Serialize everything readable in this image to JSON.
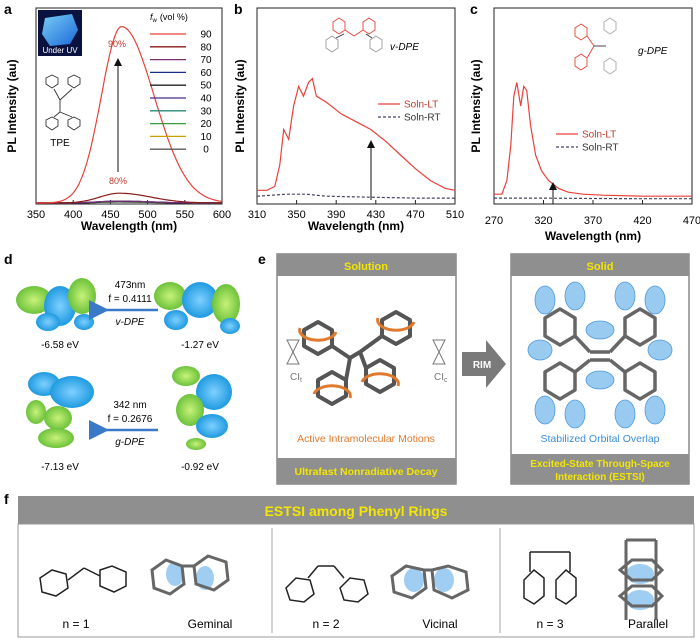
{
  "panels": {
    "a": {
      "letter": "a"
    },
    "b": {
      "letter": "b"
    },
    "c": {
      "letter": "c"
    },
    "d": {
      "letter": "d"
    },
    "e": {
      "letter": "e"
    },
    "f": {
      "letter": "f"
    }
  },
  "panel_a": {
    "inset_label": "Under UV",
    "molecule_label": "TPE",
    "legend_title": "f",
    "legend_title_sub": "w",
    "legend_unit": "(vol %)",
    "peak_label_high": "90%",
    "peak_label_low": "80%"
  },
  "panel_b": {
    "molecule_label": "v-DPE"
  },
  "panel_c": {
    "molecule_label": "g-DPE"
  },
  "panel_d": {
    "top": {
      "wavelength": "473nm",
      "osc": "f = 0.4111",
      "label": "v-DPE",
      "energy_left": "-6.58 eV",
      "energy_right": "-1.27 eV"
    },
    "bottom": {
      "wavelength": "342 nm",
      "osc": "f = 0.2676",
      "label": "g-DPE",
      "energy_left": "-7.13 eV",
      "energy_right": "-0.92 eV"
    }
  },
  "panel_e": {
    "solution_title": "Solution",
    "solid_title": "Solid",
    "ci_left": "CI",
    "ci_left_sub": "t",
    "ci_right": "CI",
    "ci_right_sub": "c",
    "arrow_label": "RIM",
    "motion_caption": "Active Intramolecular Motions",
    "overlap_caption": "Stabilized Orbital Overlap",
    "solution_footer": "Ultrafast Nonradiative Decay",
    "solid_footer_line1": "Excited-State Through-Space",
    "solid_footer_line2": "Interaction (ESTSI)"
  },
  "panel_f": {
    "title": "ESTSI among Phenyl Rings",
    "items": [
      {
        "n": "n = 1",
        "name": "Geminal"
      },
      {
        "n": "n = 2",
        "name": "Vicinal"
      },
      {
        "n": "n = 3",
        "name": "Parallel"
      }
    ]
  },
  "colors": {
    "red": "#e8413a",
    "banner": "#8f8f8f",
    "yellow": "#f3e600",
    "orange": "#e07a2e",
    "blue": "#3a8fd8"
  },
  "chart_data": [
    {
      "id": "a",
      "type": "line",
      "xlabel": "Wavelength (nm)",
      "ylabel": "PL Intensity (au)",
      "xlim": [
        350,
        600
      ],
      "ylim": [
        0,
        1
      ],
      "xticks": [
        350,
        400,
        450,
        500,
        550,
        600
      ],
      "legend": {
        "placement": "top-right",
        "entries": [
          "90",
          "80",
          "70",
          "60",
          "50",
          "40",
          "30",
          "20",
          "10",
          "0"
        ]
      },
      "series": [
        {
          "name": "90",
          "color": "#e8413a",
          "peak_x": 465,
          "peak_y": 0.9,
          "width": 62
        },
        {
          "name": "80",
          "color": "#8b1a1a",
          "peak_x": 462,
          "peak_y": 0.05,
          "width": 60
        },
        {
          "name": "70",
          "color": "#7a2f73",
          "peak_x": 460,
          "peak_y": 0.01,
          "width": 60
        },
        {
          "name": "60",
          "color": "#1a2f8c",
          "peak_x": 460,
          "peak_y": 0.01,
          "width": 60
        },
        {
          "name": "50",
          "color": "#222222",
          "peak_x": 460,
          "peak_y": 0.008,
          "width": 60
        },
        {
          "name": "40",
          "color": "#4b2a8a",
          "peak_x": 460,
          "peak_y": 0.008,
          "width": 60
        },
        {
          "name": "30",
          "color": "#2a8a7a",
          "peak_x": 460,
          "peak_y": 0.008,
          "width": 60
        },
        {
          "name": "20",
          "color": "#3a9a3a",
          "peak_x": 460,
          "peak_y": 0.006,
          "width": 60
        },
        {
          "name": "10",
          "color": "#c9a000",
          "peak_x": 460,
          "peak_y": 0.006,
          "width": 60
        },
        {
          "name": "0",
          "color": "#5a5a5a",
          "peak_x": 460,
          "peak_y": 0.005,
          "width": 60
        }
      ]
    },
    {
      "id": "b",
      "type": "line",
      "xlabel": "Wavelength (nm)",
      "ylabel": "PL Intensity (au)",
      "xlim": [
        310,
        510
      ],
      "ylim": [
        0,
        1
      ],
      "xticks": [
        310,
        350,
        390,
        430,
        470,
        510
      ],
      "legend": {
        "placement": "right",
        "entries": [
          "Soln-LT",
          "Soln-RT"
        ]
      },
      "series": [
        {
          "name": "Soln-LT",
          "color": "#e8413a",
          "points": [
            [
              310,
              0.07
            ],
            [
              320,
              0.07
            ],
            [
              328,
              0.09
            ],
            [
              333,
              0.2
            ],
            [
              337,
              0.38
            ],
            [
              342,
              0.33
            ],
            [
              347,
              0.5
            ],
            [
              352,
              0.6
            ],
            [
              357,
              0.55
            ],
            [
              362,
              0.62
            ],
            [
              366,
              0.64
            ],
            [
              370,
              0.55
            ],
            [
              380,
              0.52
            ],
            [
              395,
              0.46
            ],
            [
              410,
              0.42
            ],
            [
              425,
              0.38
            ],
            [
              440,
              0.32
            ],
            [
              455,
              0.25
            ],
            [
              470,
              0.18
            ],
            [
              485,
              0.12
            ],
            [
              500,
              0.08
            ],
            [
              510,
              0.07
            ]
          ]
        },
        {
          "name": "Soln-RT",
          "color": "#444466",
          "dashed": true,
          "points": [
            [
              310,
              0.04
            ],
            [
              340,
              0.05
            ],
            [
              360,
              0.05
            ],
            [
              380,
              0.04
            ],
            [
              420,
              0.035
            ],
            [
              470,
              0.03
            ],
            [
              510,
              0.03
            ]
          ]
        }
      ]
    },
    {
      "id": "c",
      "type": "line",
      "xlabel": "Wavelength (nm)",
      "ylabel": "PL Intensity (au)",
      "xlim": [
        270,
        470
      ],
      "ylim": [
        0,
        1
      ],
      "xticks": [
        270,
        320,
        370,
        420,
        470
      ],
      "legend": {
        "placement": "right",
        "entries": [
          "Soln-LT",
          "Soln-RT"
        ]
      },
      "series": [
        {
          "name": "Soln-LT",
          "color": "#e8413a",
          "points": [
            [
              270,
              0.05
            ],
            [
              278,
              0.05
            ],
            [
              283,
              0.12
            ],
            [
              287,
              0.3
            ],
            [
              290,
              0.55
            ],
            [
              293,
              0.62
            ],
            [
              297,
              0.5
            ],
            [
              300,
              0.6
            ],
            [
              303,
              0.58
            ],
            [
              307,
              0.4
            ],
            [
              312,
              0.25
            ],
            [
              318,
              0.17
            ],
            [
              325,
              0.12
            ],
            [
              335,
              0.08
            ],
            [
              345,
              0.06
            ],
            [
              360,
              0.05
            ],
            [
              380,
              0.045
            ],
            [
              420,
              0.04
            ],
            [
              470,
              0.04
            ]
          ]
        },
        {
          "name": "Soln-RT",
          "color": "#444466",
          "dashed": true,
          "points": [
            [
              270,
              0.03
            ],
            [
              320,
              0.03
            ],
            [
              370,
              0.028
            ],
            [
              420,
              0.027
            ],
            [
              470,
              0.027
            ]
          ]
        }
      ]
    }
  ]
}
